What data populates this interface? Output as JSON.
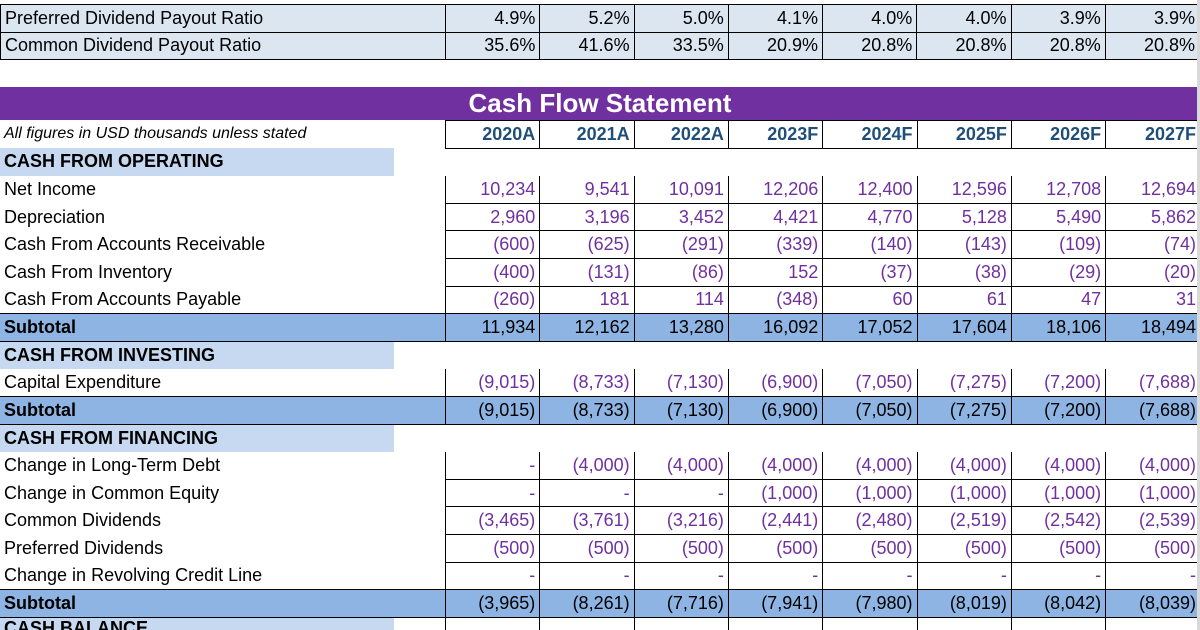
{
  "top": {
    "rows": [
      {
        "label": "Preferred Dividend Payout Ratio",
        "values": [
          "4.9%",
          "5.2%",
          "5.0%",
          "4.1%",
          "4.0%",
          "4.0%",
          "3.9%",
          "3.9%"
        ]
      },
      {
        "label": "Common Dividend Payout Ratio",
        "values": [
          "35.6%",
          "41.6%",
          "33.5%",
          "20.9%",
          "20.8%",
          "20.8%",
          "20.8%",
          "20.8%"
        ]
      }
    ]
  },
  "cash_flow": {
    "title": "Cash Flow Statement",
    "units_note": "All figures in USD thousands unless stated",
    "years": [
      "2020A",
      "2021A",
      "2022A",
      "2023F",
      "2024F",
      "2025F",
      "2026F",
      "2027F"
    ],
    "operating": {
      "heading": "CASH FROM OPERATING",
      "rows": [
        {
          "label": "Net Income",
          "values": [
            "10,234",
            "9,541",
            "10,091",
            "12,206",
            "12,400",
            "12,596",
            "12,708",
            "12,694"
          ]
        },
        {
          "label": "Depreciation",
          "values": [
            "2,960",
            "3,196",
            "3,452",
            "4,421",
            "4,770",
            "5,128",
            "5,490",
            "5,862"
          ]
        },
        {
          "label": "Cash From Accounts Receivable",
          "values": [
            "(600)",
            "(625)",
            "(291)",
            "(339)",
            "(140)",
            "(143)",
            "(109)",
            "(74)"
          ]
        },
        {
          "label": "Cash From Inventory",
          "values": [
            "(400)",
            "(131)",
            "(86)",
            "152",
            "(37)",
            "(38)",
            "(29)",
            "(20)"
          ]
        },
        {
          "label": "Cash From Accounts Payable",
          "values": [
            "(260)",
            "181",
            "114",
            "(348)",
            "60",
            "61",
            "47",
            "31"
          ]
        }
      ],
      "subtotal": {
        "label": "Subtotal",
        "values": [
          "11,934",
          "12,162",
          "13,280",
          "16,092",
          "17,052",
          "17,604",
          "18,106",
          "18,494"
        ]
      }
    },
    "investing": {
      "heading": "CASH FROM INVESTING",
      "rows": [
        {
          "label": "Capital Expenditure",
          "values": [
            "(9,015)",
            "(8,733)",
            "(7,130)",
            "(6,900)",
            "(7,050)",
            "(7,275)",
            "(7,200)",
            "(7,688)"
          ]
        }
      ],
      "subtotal": {
        "label": "Subtotal",
        "values": [
          "(9,015)",
          "(8,733)",
          "(7,130)",
          "(6,900)",
          "(7,050)",
          "(7,275)",
          "(7,200)",
          "(7,688)"
        ]
      }
    },
    "financing": {
      "heading": "CASH FROM FINANCING",
      "rows": [
        {
          "label": "Change in Long-Term Debt",
          "values": [
            "-",
            "(4,000)",
            "(4,000)",
            "(4,000)",
            "(4,000)",
            "(4,000)",
            "(4,000)",
            "(4,000)"
          ]
        },
        {
          "label": "Change in Common Equity",
          "values": [
            "-",
            "-",
            "-",
            "(1,000)",
            "(1,000)",
            "(1,000)",
            "(1,000)",
            "(1,000)"
          ]
        },
        {
          "label": "Common Dividends",
          "values": [
            "(3,465)",
            "(3,761)",
            "(3,216)",
            "(2,441)",
            "(2,480)",
            "(2,519)",
            "(2,542)",
            "(2,539)"
          ]
        },
        {
          "label": "Preferred Dividends",
          "values": [
            "(500)",
            "(500)",
            "(500)",
            "(500)",
            "(500)",
            "(500)",
            "(500)",
            "(500)"
          ]
        },
        {
          "label": "Change in Revolving Credit Line",
          "values": [
            "-",
            "-",
            "-",
            "-",
            "-",
            "-",
            "-",
            "-"
          ]
        }
      ],
      "subtotal": {
        "label": "Subtotal",
        "values": [
          "(3,965)",
          "(8,261)",
          "(7,716)",
          "(7,941)",
          "(7,980)",
          "(8,019)",
          "(8,042)",
          "(8,039)"
        ]
      }
    },
    "cash_balance": {
      "heading": "CASH BALANCE"
    }
  },
  "colors": {
    "title_bar": "#7030a0",
    "value_text": "#7030a0",
    "year_header_text": "#1f4e79",
    "subtotal_fill": "#8db4e2",
    "section_fill": "#c6d9f0",
    "top_fill": "#dce6f1"
  }
}
